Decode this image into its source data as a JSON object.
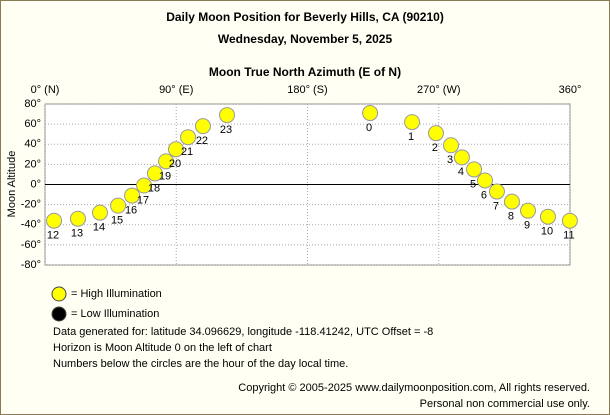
{
  "chart_data": {
    "type": "scatter",
    "title": "Daily Moon Position for Beverly Hills, CA (90210)",
    "subtitle": "Wednesday, November 5, 2025",
    "x_label": "Moon True North Azimuth (E of N)",
    "y_label": "Moon Altitude",
    "xlim": [
      0,
      360
    ],
    "ylim": [
      -80,
      80
    ],
    "xticks": [
      {
        "value": 0,
        "label": "0° (N)"
      },
      {
        "value": 90,
        "label": "90° (E)"
      },
      {
        "value": 180,
        "label": "180° (S)"
      },
      {
        "value": 270,
        "label": "270° (W)"
      },
      {
        "value": 360,
        "label": "360°"
      }
    ],
    "yticks": [
      {
        "value": 80,
        "label": "80°"
      },
      {
        "value": 60,
        "label": "60°"
      },
      {
        "value": 40,
        "label": "40°"
      },
      {
        "value": 20,
        "label": "20°"
      },
      {
        "value": 0,
        "label": "0°"
      },
      {
        "value": -20,
        "label": "-20°"
      },
      {
        "value": -40,
        "label": "-40°"
      },
      {
        "value": -60,
        "label": "-60°"
      },
      {
        "value": -80,
        "label": "-80°"
      }
    ],
    "grid": true,
    "series": [
      {
        "name": "High Illumination",
        "color": "#ffff00",
        "x": [
          222.9,
          251.7,
          268.1,
          278.4,
          285.9,
          294.2,
          301.7,
          309.9,
          320.2,
          331.2,
          344.9,
          359.9,
          6.2,
          22.6,
          37.7,
          50.1,
          59.7,
          67.9,
          75.4,
          83.0,
          89.8,
          98.1,
          108.3,
          124.8
        ],
        "values": [
          71,
          62,
          51,
          39,
          27,
          15,
          4,
          -7,
          -17,
          -26,
          -32,
          -36,
          -36,
          -34,
          -28,
          -21,
          -11,
          -1,
          11,
          23,
          35,
          47,
          58,
          69
        ],
        "point_labels": [
          "0",
          "1",
          "2",
          "3",
          "4",
          "5",
          "6",
          "7",
          "8",
          "9",
          "10",
          "11",
          "12",
          "13",
          "14",
          "15",
          "16",
          "17",
          "18",
          "19",
          "20",
          "21",
          "22",
          "23"
        ]
      }
    ],
    "legend": [
      {
        "label": "= High Illumination",
        "color": "#ffff00"
      },
      {
        "label": "= Low Illumination",
        "color": "#000000"
      }
    ],
    "notes": [
      "Data generated for: latitude 34.096629, longitude -118.41242, UTC Offset = -8",
      "Horizon is Moon Altitude 0 on the left of chart",
      "Numbers below the circles are the hour of the day local time."
    ],
    "copyright": [
      "Copyright © 2005-2025 www.dailymoonposition.com, All rights reserved.",
      "Personal non commercial use only."
    ]
  }
}
